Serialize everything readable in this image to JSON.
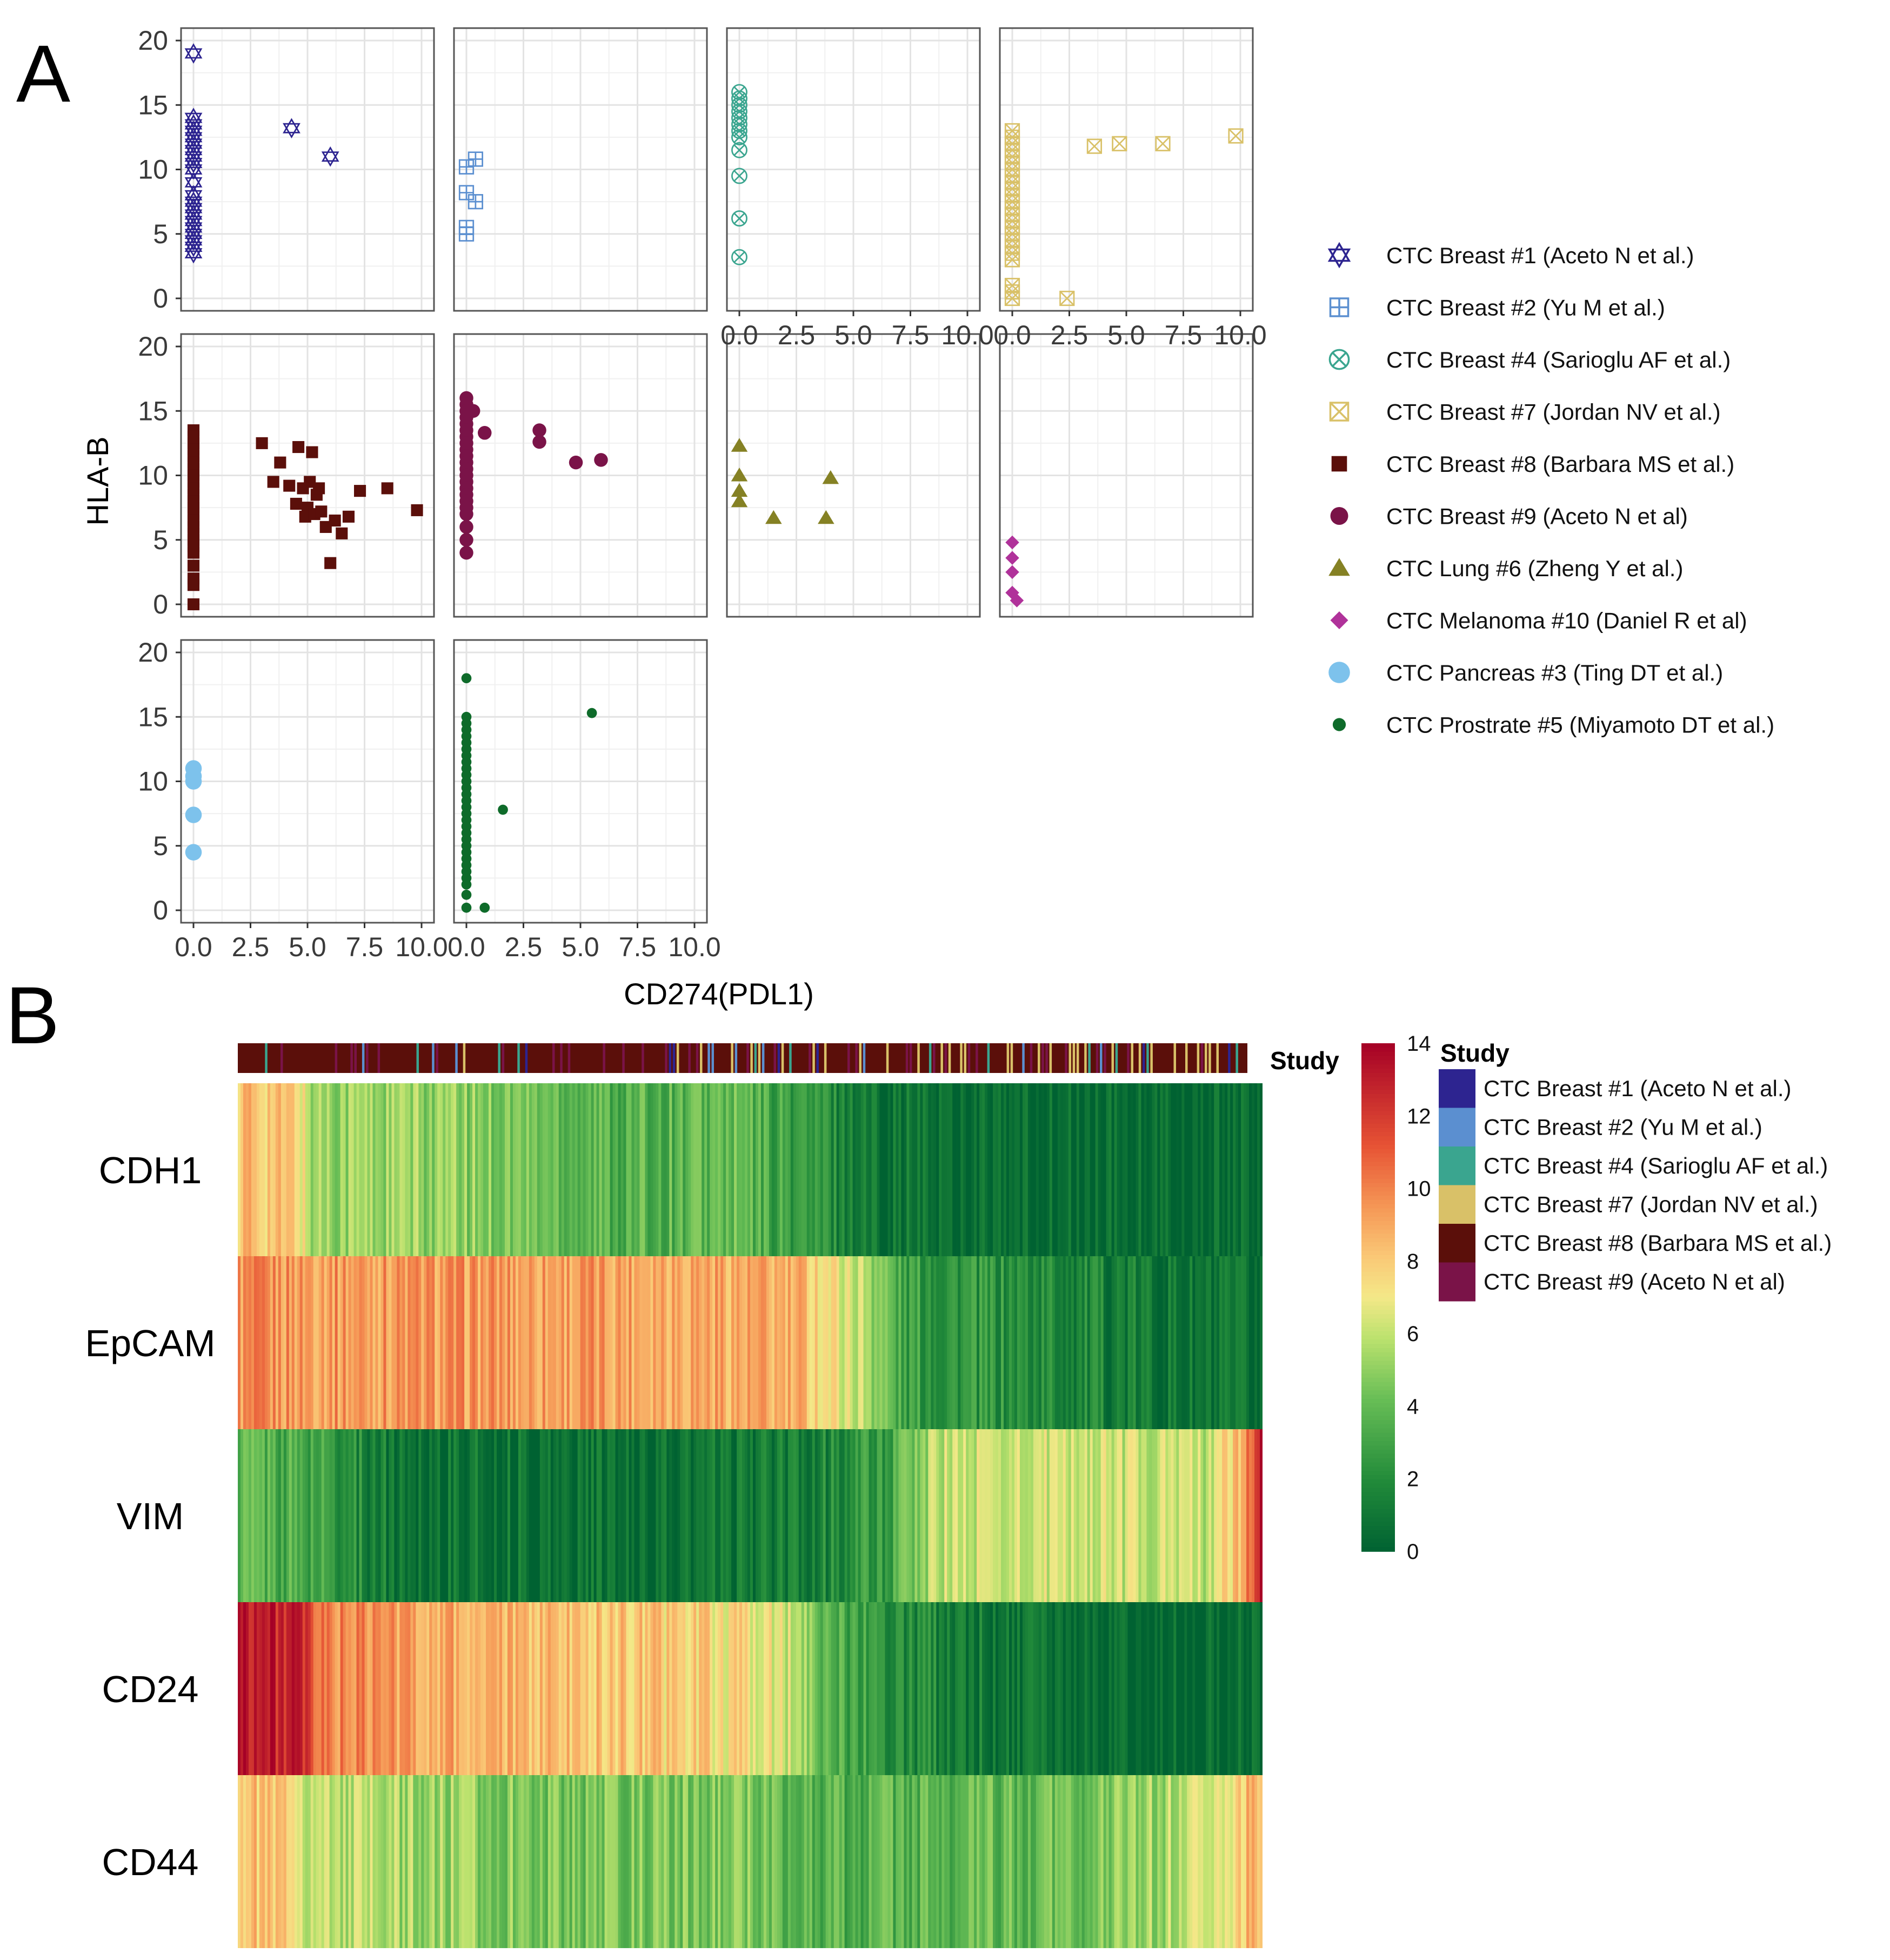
{
  "panels": {
    "a_label": "A",
    "b_label": "B"
  },
  "colors": {
    "breast1": "#2d2490",
    "breast2": "#5b8fd0",
    "breast4": "#3aa58f",
    "breast7": "#d9c168",
    "breast8": "#5b0f0a",
    "breast9": "#7a1348",
    "lung6": "#858124",
    "melanoma10": "#b0329a",
    "pancreas3": "#7dc2ec",
    "prostate5": "#0e6b2a"
  },
  "chart_data": [
    {
      "type": "scatter",
      "facet": true,
      "title": "",
      "xlabel": "CD274(PDL1)",
      "ylabel": "HLA-B",
      "xlim": [
        0,
        10
      ],
      "ylim": [
        0,
        20
      ],
      "xticks": [
        "0.0",
        "2.5",
        "5.0",
        "7.5",
        "10.0"
      ],
      "yticks": [
        "0",
        "5",
        "10",
        "15",
        "20"
      ],
      "grid": true,
      "legend_position": "right",
      "series": [
        {
          "name": "CTC Breast #1 (Aceto N et al.)",
          "marker": "star",
          "color": "breast1",
          "x": [
            0,
            0,
            0,
            0,
            0,
            0,
            0,
            0,
            0,
            0,
            0,
            0,
            0,
            0,
            0,
            0,
            0,
            0,
            0,
            0,
            0,
            4.3,
            6
          ],
          "y": [
            19,
            14,
            13.5,
            13,
            12.5,
            12,
            11.5,
            11,
            10.5,
            10,
            9,
            8,
            7.5,
            7,
            6.5,
            6,
            5.5,
            5,
            4.5,
            4,
            3.5,
            13.2,
            11
          ]
        },
        {
          "name": "CTC Breast #2 (Yu M et al.)",
          "marker": "square-plus",
          "color": "breast2",
          "x": [
            0,
            0.4,
            0,
            0.4,
            0,
            0
          ],
          "y": [
            10.2,
            10.8,
            8.2,
            7.5,
            5.5,
            5
          ]
        },
        {
          "name": "CTC Breast #4 (Sarioglu AF et al.)",
          "marker": "circle-x",
          "color": "breast4",
          "x": [
            0,
            0,
            0,
            0,
            0,
            0,
            0,
            0,
            0,
            0,
            0,
            0
          ],
          "y": [
            16,
            15.5,
            15,
            14.5,
            14,
            13.5,
            13,
            12.5,
            11.5,
            9.5,
            6.2,
            3.2
          ]
        },
        {
          "name": "CTC Breast #7 (Jordan NV et al.)",
          "marker": "square-x",
          "color": "breast7",
          "x": [
            0,
            0,
            0,
            0,
            0,
            0,
            0,
            0,
            0,
            0,
            0,
            0,
            0,
            0,
            0,
            0,
            0,
            0,
            0,
            0,
            0,
            0,
            0,
            0,
            2.4,
            3.6,
            4.7,
            6.6,
            9.8
          ],
          "y": [
            13,
            12.5,
            12,
            11.5,
            11,
            10.5,
            10,
            9.5,
            9,
            8.5,
            8,
            7.5,
            7,
            6.5,
            6,
            5.5,
            5,
            4.5,
            4,
            3.5,
            3,
            1,
            0.5,
            0,
            0,
            11.8,
            12,
            12,
            12.6
          ]
        },
        {
          "name": "CTC Breast #8 (Barbara MS et al.)",
          "marker": "square",
          "color": "breast8",
          "x": [
            0,
            0,
            0,
            0,
            0,
            0,
            0,
            0,
            0,
            0,
            0,
            0,
            0,
            0,
            0,
            0,
            0,
            0,
            0,
            0,
            0,
            0,
            0,
            0,
            3,
            3.5,
            3.8,
            4.2,
            4.5,
            4.6,
            4.8,
            4.9,
            5,
            5.1,
            5.2,
            5.3,
            5.4,
            5.5,
            5.6,
            5.8,
            6,
            6.2,
            6.5,
            6.8,
            7.3,
            8.5,
            9.8
          ],
          "y": [
            13.5,
            13,
            12.5,
            12,
            11.5,
            11,
            10.5,
            10,
            9.5,
            9,
            8.5,
            8,
            7.5,
            7,
            6.5,
            6,
            5.5,
            5,
            4.5,
            4,
            3,
            2,
            1.5,
            0,
            12.5,
            9.5,
            11,
            9.2,
            7.8,
            12.2,
            9,
            6.8,
            7.5,
            9.5,
            11.8,
            7,
            8.5,
            9,
            7.2,
            6,
            3.2,
            6.5,
            5.5,
            6.8,
            8.8,
            9,
            7.3
          ]
        },
        {
          "name": "CTC Breast #9 (Aceto N et al)",
          "marker": "circle",
          "color": "breast9",
          "x": [
            0,
            0,
            0,
            0,
            0,
            0,
            0,
            0,
            0,
            0,
            0,
            0,
            0,
            0,
            0,
            0,
            0,
            0,
            0,
            0,
            0,
            0,
            0.3,
            0.8,
            3.2,
            3.2,
            4.8,
            5.9
          ],
          "y": [
            16,
            15.5,
            15,
            14.5,
            14,
            13.5,
            13,
            12.5,
            12,
            11.5,
            11,
            10.5,
            10,
            9.5,
            9,
            8.5,
            8,
            7.5,
            7,
            6,
            5,
            4,
            15,
            13.3,
            13.5,
            12.6,
            11,
            11.2
          ]
        },
        {
          "name": "CTC Lung #6 (Zheng Y et al.)",
          "marker": "triangle",
          "color": "lung6",
          "x": [
            0,
            0,
            0,
            0,
            1.5,
            3.8,
            4
          ],
          "y": [
            12.3,
            10,
            8.8,
            8,
            6.7,
            6.7,
            9.8
          ]
        },
        {
          "name": "CTC Melanoma #10 (Daniel R et al)",
          "marker": "diamond",
          "color": "melanoma10",
          "x": [
            0,
            0,
            0,
            0,
            0.2
          ],
          "y": [
            4.8,
            3.6,
            2.5,
            0.9,
            0.3
          ]
        },
        {
          "name": "CTC Pancreas #3 (Ting DT et al.)",
          "marker": "circle-large",
          "color": "pancreas3",
          "x": [
            0,
            0,
            0,
            0,
            0
          ],
          "y": [
            11,
            10.4,
            10,
            7.4,
            4.5
          ]
        },
        {
          "name": "CTC Prostrate #5 (Miyamoto DT et al.)",
          "marker": "dot",
          "color": "prostate5",
          "x": [
            0,
            0,
            0,
            0,
            0,
            0,
            0,
            0,
            0,
            0,
            0,
            0,
            0,
            0,
            0,
            0,
            0,
            0,
            0,
            0,
            0,
            0,
            0,
            0,
            0,
            0,
            0,
            0,
            0,
            0,
            0.8,
            1.6,
            5.5
          ],
          "y": [
            18,
            15,
            14.5,
            14,
            13.5,
            13,
            12.5,
            12,
            11.5,
            11,
            10.5,
            10,
            9.5,
            9,
            8.5,
            8,
            7.5,
            7,
            6.5,
            6,
            5.5,
            5,
            4.5,
            4,
            3.5,
            3,
            2.5,
            2,
            1.2,
            0.2,
            0.2,
            7.8,
            15.3
          ]
        }
      ]
    },
    {
      "type": "heatmap",
      "genes": [
        "CDH1",
        "EpCAM",
        "VIM",
        "CD24",
        "CD44"
      ],
      "colorbar": {
        "min": 0,
        "max": 14,
        "ticks": [
          "14",
          "12",
          "10",
          "8",
          "6",
          "4",
          "2",
          "0"
        ]
      },
      "annotation_label": "Study",
      "legend_title": "Study",
      "legend": [
        {
          "name": "CTC Breast #1 (Aceto N et al.)",
          "color": "breast1"
        },
        {
          "name": "CTC Breast #2 (Yu M et al.)",
          "color": "breast2"
        },
        {
          "name": "CTC Breast #4 (Sarioglu AF et al.)",
          "color": "breast4"
        },
        {
          "name": "CTC Breast #7 (Jordan NV et al.)",
          "color": "breast7"
        },
        {
          "name": "CTC Breast #8 (Barbara MS et al.)",
          "color": "breast8"
        },
        {
          "name": "CTC Breast #9 (Aceto N et al)",
          "color": "breast9"
        }
      ],
      "profiles": {
        "CDH1": [
          [
            0,
            8.5
          ],
          [
            0.06,
            7.8
          ],
          [
            0.07,
            5.5
          ],
          [
            0.25,
            4.8
          ],
          [
            0.38,
            3.5
          ],
          [
            0.48,
            4
          ],
          [
            0.57,
            2.2
          ],
          [
            0.62,
            1
          ],
          [
            0.75,
            0.3
          ],
          [
            1,
            0.3
          ]
        ],
        "EpCAM": [
          [
            0,
            9.5
          ],
          [
            0.45,
            9.2
          ],
          [
            0.55,
            8.5
          ],
          [
            0.58,
            7.2
          ],
          [
            0.62,
            5.5
          ],
          [
            0.65,
            2.8
          ],
          [
            0.8,
            1.8
          ],
          [
            0.95,
            0.6
          ],
          [
            1,
            0.5
          ]
        ],
        "VIM": [
          [
            0,
            4
          ],
          [
            0.08,
            3
          ],
          [
            0.15,
            1
          ],
          [
            0.4,
            0.5
          ],
          [
            0.55,
            1.2
          ],
          [
            0.64,
            3
          ],
          [
            0.68,
            6
          ],
          [
            0.85,
            6.3
          ],
          [
            0.95,
            6
          ],
          [
            0.98,
            9
          ],
          [
            1,
            13.5
          ]
        ],
        "CD24": [
          [
            0,
            13.5
          ],
          [
            0.06,
            12.5
          ],
          [
            0.08,
            10
          ],
          [
            0.25,
            8.5
          ],
          [
            0.4,
            8
          ],
          [
            0.5,
            7.2
          ],
          [
            0.55,
            6
          ],
          [
            0.58,
            3.5
          ],
          [
            0.65,
            2
          ],
          [
            0.8,
            0.3
          ],
          [
            1,
            0.3
          ]
        ],
        "CD44": [
          [
            0,
            8.5
          ],
          [
            0.06,
            7.5
          ],
          [
            0.07,
            6
          ],
          [
            0.3,
            4.5
          ],
          [
            0.5,
            4.5
          ],
          [
            0.58,
            3.5
          ],
          [
            0.75,
            4
          ],
          [
            0.85,
            4.5
          ],
          [
            0.95,
            6.5
          ],
          [
            1,
            9
          ]
        ]
      }
    }
  ]
}
